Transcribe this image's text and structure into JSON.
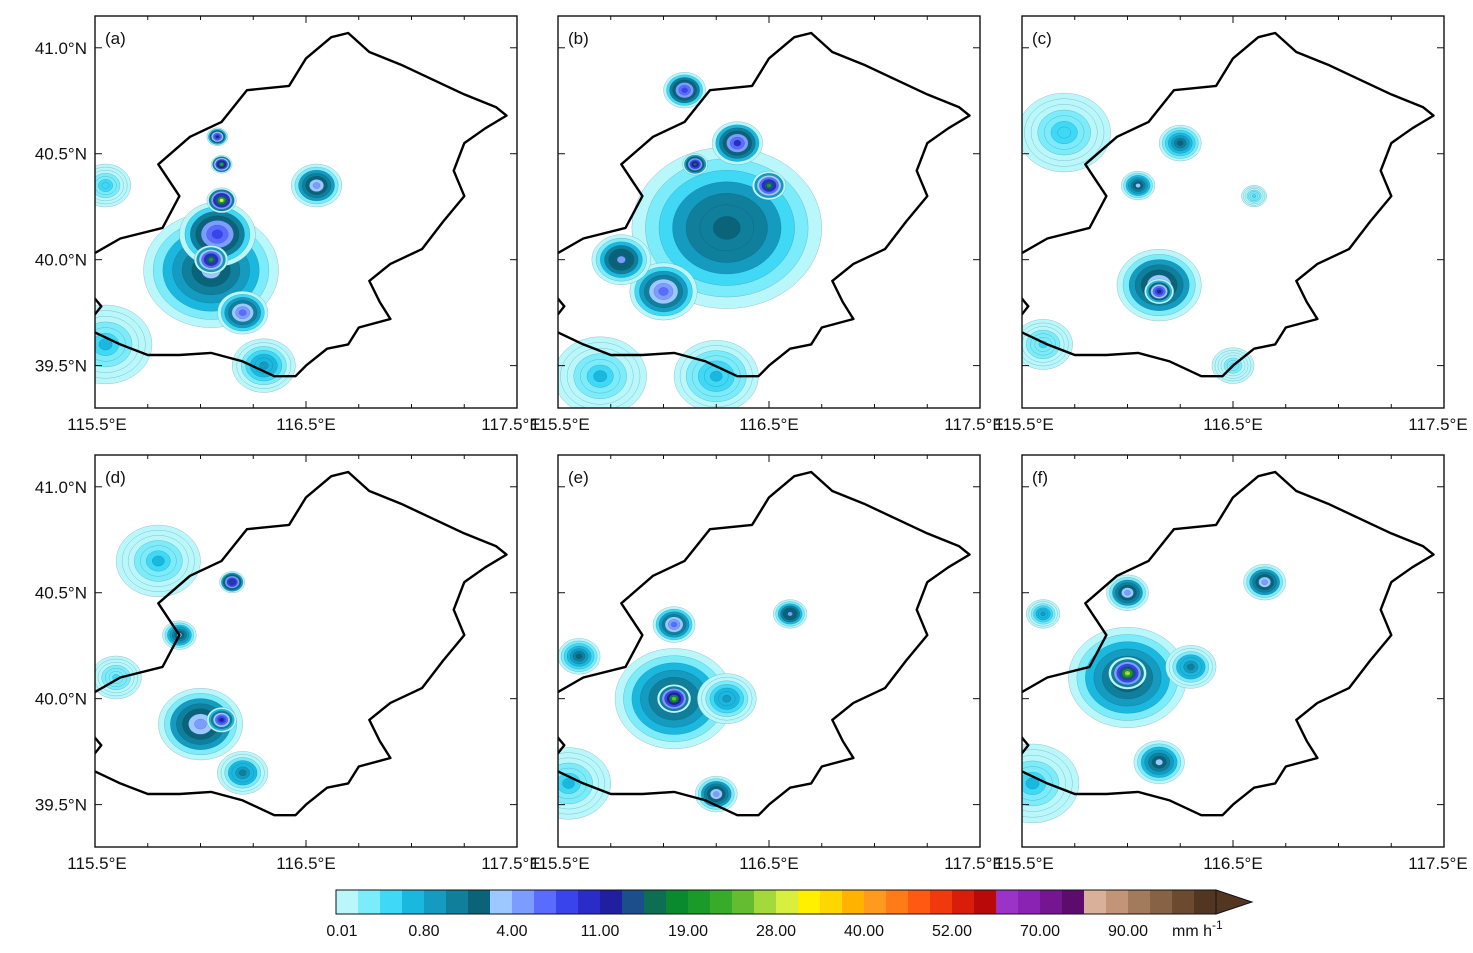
{
  "panels": [
    {
      "label": "(a)",
      "cells": [
        {
          "lon": 116.05,
          "lat": 39.95,
          "r": 0.32,
          "v": 3
        },
        {
          "lon": 116.08,
          "lat": 40.12,
          "r": 0.18,
          "v": 8
        },
        {
          "lon": 116.1,
          "lat": 40.28,
          "r": 0.07,
          "v": 28
        },
        {
          "lon": 116.1,
          "lat": 40.45,
          "r": 0.05,
          "v": 22
        },
        {
          "lon": 116.08,
          "lat": 40.58,
          "r": 0.05,
          "v": 12
        },
        {
          "lon": 116.05,
          "lat": 40.0,
          "r": 0.08,
          "v": 20
        },
        {
          "lon": 116.2,
          "lat": 39.75,
          "r": 0.12,
          "v": 6
        },
        {
          "lon": 116.55,
          "lat": 40.35,
          "r": 0.12,
          "v": 5
        },
        {
          "lon": 115.55,
          "lat": 39.6,
          "r": 0.22,
          "v": 0.5
        },
        {
          "lon": 115.55,
          "lat": 40.35,
          "r": 0.12,
          "v": 0.4
        },
        {
          "lon": 116.3,
          "lat": 39.5,
          "r": 0.15,
          "v": 1
        }
      ]
    },
    {
      "label": "(b)",
      "cells": [
        {
          "lon": 116.3,
          "lat": 40.15,
          "r": 0.45,
          "v": 2.5
        },
        {
          "lon": 116.5,
          "lat": 40.35,
          "r": 0.08,
          "v": 19
        },
        {
          "lon": 116.15,
          "lat": 40.45,
          "r": 0.06,
          "v": 15
        },
        {
          "lon": 116.35,
          "lat": 40.55,
          "r": 0.12,
          "v": 9
        },
        {
          "lon": 116.1,
          "lat": 40.8,
          "r": 0.1,
          "v": 8
        },
        {
          "lon": 116.0,
          "lat": 39.85,
          "r": 0.16,
          "v": 6
        },
        {
          "lon": 115.8,
          "lat": 40.0,
          "r": 0.14,
          "v": 4
        },
        {
          "lon": 115.7,
          "lat": 39.45,
          "r": 0.22,
          "v": 0.5
        },
        {
          "lon": 116.25,
          "lat": 39.45,
          "r": 0.2,
          "v": 0.6
        }
      ]
    },
    {
      "label": "(c)",
      "cells": [
        {
          "lon": 116.15,
          "lat": 39.88,
          "r": 0.2,
          "v": 5
        },
        {
          "lon": 116.15,
          "lat": 39.85,
          "r": 0.07,
          "v": 12
        },
        {
          "lon": 115.7,
          "lat": 40.6,
          "r": 0.22,
          "v": 0.4
        },
        {
          "lon": 116.05,
          "lat": 40.35,
          "r": 0.08,
          "v": 3
        },
        {
          "lon": 116.25,
          "lat": 40.55,
          "r": 0.1,
          "v": 2
        },
        {
          "lon": 115.6,
          "lat": 39.6,
          "r": 0.14,
          "v": 0.3
        },
        {
          "lon": 116.5,
          "lat": 39.5,
          "r": 0.1,
          "v": 0.2
        },
        {
          "lon": 116.6,
          "lat": 40.3,
          "r": 0.06,
          "v": 0.3
        }
      ]
    },
    {
      "label": "(d)",
      "cells": [
        {
          "lon": 116.0,
          "lat": 39.88,
          "r": 0.2,
          "v": 5
        },
        {
          "lon": 116.1,
          "lat": 39.9,
          "r": 0.07,
          "v": 11
        },
        {
          "lon": 116.15,
          "lat": 40.55,
          "r": 0.06,
          "v": 14
        },
        {
          "lon": 115.8,
          "lat": 40.65,
          "r": 0.2,
          "v": 0.5
        },
        {
          "lon": 115.9,
          "lat": 40.3,
          "r": 0.08,
          "v": 3
        },
        {
          "lon": 115.6,
          "lat": 40.1,
          "r": 0.12,
          "v": 0.3
        },
        {
          "lon": 116.2,
          "lat": 39.65,
          "r": 0.12,
          "v": 1.5
        }
      ]
    },
    {
      "label": "(e)",
      "cells": [
        {
          "lon": 116.05,
          "lat": 40.0,
          "r": 0.28,
          "v": 3
        },
        {
          "lon": 116.05,
          "lat": 40.0,
          "r": 0.08,
          "v": 24
        },
        {
          "lon": 116.05,
          "lat": 40.35,
          "r": 0.1,
          "v": 6
        },
        {
          "lon": 116.6,
          "lat": 40.4,
          "r": 0.08,
          "v": 4
        },
        {
          "lon": 116.25,
          "lat": 39.55,
          "r": 0.1,
          "v": 5
        },
        {
          "lon": 115.55,
          "lat": 39.6,
          "r": 0.2,
          "v": 0.5
        },
        {
          "lon": 115.6,
          "lat": 40.2,
          "r": 0.1,
          "v": 2
        },
        {
          "lon": 116.3,
          "lat": 40.0,
          "r": 0.14,
          "v": 1
        }
      ]
    },
    {
      "label": "(f)",
      "cells": [
        {
          "lon": 116.0,
          "lat": 40.1,
          "r": 0.28,
          "v": 3
        },
        {
          "lon": 116.0,
          "lat": 40.12,
          "r": 0.09,
          "v": 26
        },
        {
          "lon": 116.0,
          "lat": 40.5,
          "r": 0.1,
          "v": 5
        },
        {
          "lon": 116.65,
          "lat": 40.55,
          "r": 0.1,
          "v": 5
        },
        {
          "lon": 116.15,
          "lat": 39.7,
          "r": 0.12,
          "v": 3
        },
        {
          "lon": 116.3,
          "lat": 40.15,
          "r": 0.12,
          "v": 1.5
        },
        {
          "lon": 115.55,
          "lat": 39.6,
          "r": 0.22,
          "v": 0.5
        },
        {
          "lon": 115.6,
          "lat": 40.4,
          "r": 0.08,
          "v": 1
        }
      ]
    }
  ],
  "axes": {
    "lon_ticks": [
      "115.5°E",
      "116.5°E",
      "117.5°E"
    ],
    "lat_ticks": [
      "41.0°N",
      "40.5°N",
      "40.0°N",
      "39.5°N"
    ],
    "lon_values": [
      115.5,
      116.5,
      117.5
    ],
    "lat_values": [
      41.0,
      40.5,
      40.0,
      39.5
    ],
    "lon_range": [
      115.5,
      117.5
    ],
    "lat_range": [
      39.3,
      41.15
    ]
  },
  "colorbar": {
    "labels": [
      "0.01",
      "0.80",
      "4.00",
      "11.00",
      "19.00",
      "28.00",
      "40.00",
      "52.00",
      "70.00",
      "90.00"
    ],
    "unit": "mm h",
    "unit_exp": "-1",
    "thresholds": [
      0.01,
      0.1,
      0.3,
      0.5,
      0.8,
      1.2,
      2.0,
      3.0,
      4.0,
      5.5,
      7.0,
      9.0,
      11.0,
      13.0,
      15.0,
      17.0,
      19.0,
      21.0,
      24.0,
      26.0,
      28.0,
      31.0,
      34.0,
      37.0,
      40.0,
      43.0,
      46.0,
      49.0,
      52.0,
      56.0,
      60.0,
      65.0,
      70.0,
      75.0,
      80.0,
      85.0,
      90.0,
      95.0,
      100.0
    ],
    "colors": [
      "#b9f7fb",
      "#7cecfa",
      "#3fd8f5",
      "#1ab8df",
      "#149bbf",
      "#0f7f9b",
      "#0a6378",
      "#9cc8ff",
      "#7d9cff",
      "#5a6cff",
      "#3a44ec",
      "#2a2cc8",
      "#1f1fa0",
      "#1b4e8a",
      "#0d6e52",
      "#0a8a2e",
      "#1a9a28",
      "#38ab2a",
      "#64bd30",
      "#a3d93a",
      "#d8ef3f",
      "#fff000",
      "#ffd700",
      "#ffb300",
      "#ff9a1f",
      "#ff7b17",
      "#ff5a12",
      "#f03a0d",
      "#d81e0a",
      "#b80a08",
      "#9b33c8",
      "#8a22b4",
      "#74168f",
      "#5d0c6e",
      "#d9b09a",
      "#c29478",
      "#a27a5c",
      "#876244",
      "#6c4a30",
      "#523622"
    ]
  }
}
